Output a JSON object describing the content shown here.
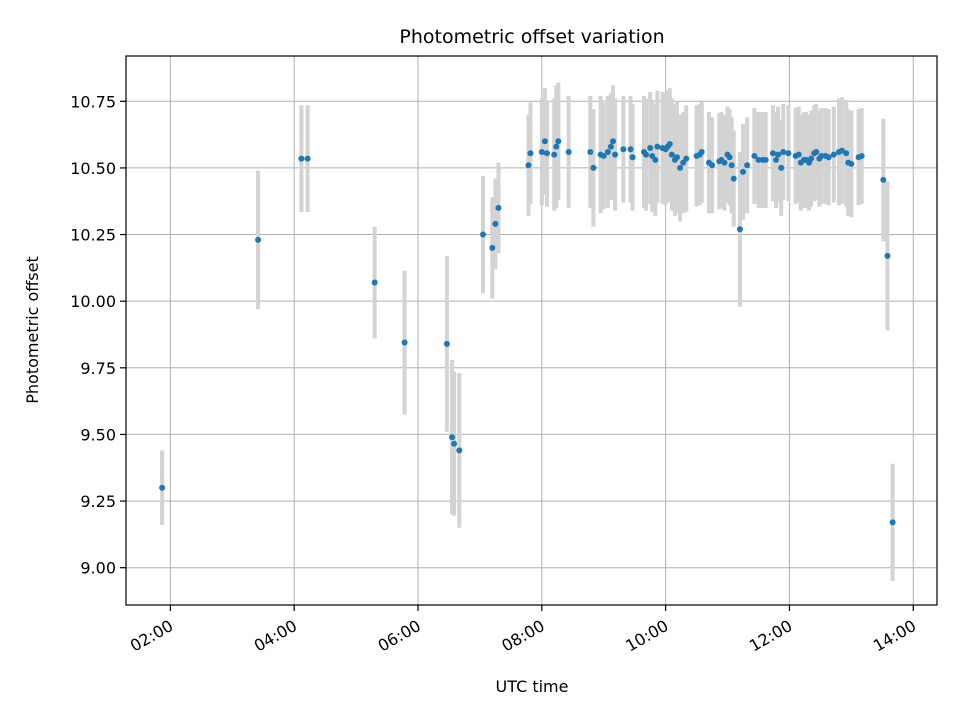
{
  "chart_data": {
    "type": "scatter",
    "title": "Photometric offset variation",
    "xlabel": "UTC time",
    "ylabel": "Photometric offset",
    "xlim": [
      "01:17",
      "14:23"
    ],
    "ylim": [
      8.86,
      10.92
    ],
    "x_ticks": [
      "02:00",
      "04:00",
      "06:00",
      "08:00",
      "10:00",
      "12:00",
      "14:00"
    ],
    "y_ticks": [
      "9.00",
      "9.25",
      "9.50",
      "9.75",
      "10.00",
      "10.25",
      "10.50",
      "10.75"
    ],
    "grid": true,
    "colors": {
      "marker": "#1f77b4",
      "errorbar": "#d3d3d3",
      "grid": "#b0b0b0",
      "axis": "#000000"
    },
    "series": [
      {
        "x": [
          "01:52",
          "03:25",
          "04:07",
          "04:13",
          "05:18",
          "05:47",
          "06:28",
          "06:33",
          "06:35",
          "06:40",
          "07:03",
          "07:12",
          "07:15",
          "07:18",
          "07:47",
          "07:49",
          "08:00",
          "08:03",
          "08:05",
          "08:12",
          "08:14",
          "08:16",
          "08:26",
          "08:47",
          "08:50",
          "08:57",
          "09:00",
          "09:04",
          "09:07",
          "09:09",
          "09:11",
          "09:19",
          "09:26",
          "09:28",
          "09:39",
          "09:41",
          "09:45",
          "09:47",
          "09:50",
          "09:52",
          "09:57",
          "10:00",
          "10:02",
          "10:04",
          "10:06",
          "10:09",
          "10:11",
          "10:14",
          "10:17",
          "10:20",
          "10:30",
          "10:33",
          "10:35",
          "10:42",
          "10:45",
          "10:52",
          "10:54",
          "10:57",
          "11:00",
          "11:02",
          "11:04",
          "11:06",
          "11:12",
          "11:15",
          "11:19",
          "11:26",
          "11:30",
          "11:34",
          "11:37",
          "11:44",
          "11:47",
          "11:49",
          "11:52",
          "11:54",
          "11:59",
          "12:06",
          "12:09",
          "12:11",
          "12:14",
          "12:16",
          "12:19",
          "12:21",
          "12:24",
          "12:26",
          "12:29",
          "12:31",
          "12:35",
          "12:38",
          "12:43",
          "12:48",
          "12:51",
          "12:55",
          "12:57",
          "13:00",
          "13:07",
          "13:10",
          "13:31",
          "13:35",
          "13:40"
        ],
        "y": [
          9.3,
          10.23,
          10.535,
          10.535,
          10.07,
          9.845,
          9.84,
          9.49,
          9.465,
          9.44,
          10.25,
          10.2,
          10.29,
          10.35,
          10.51,
          10.555,
          10.56,
          10.6,
          10.555,
          10.55,
          10.58,
          10.6,
          10.56,
          10.56,
          10.5,
          10.55,
          10.545,
          10.56,
          10.58,
          10.6,
          10.55,
          10.57,
          10.57,
          10.54,
          10.56,
          10.55,
          10.575,
          10.545,
          10.53,
          10.58,
          10.575,
          10.57,
          10.58,
          10.59,
          10.55,
          10.53,
          10.54,
          10.5,
          10.52,
          10.535,
          10.545,
          10.55,
          10.56,
          10.52,
          10.51,
          10.525,
          10.53,
          10.52,
          10.55,
          10.54,
          10.51,
          10.46,
          10.27,
          10.485,
          10.51,
          10.545,
          10.53,
          10.53,
          10.53,
          10.555,
          10.53,
          10.55,
          10.5,
          10.56,
          10.555,
          10.545,
          10.55,
          10.52,
          10.53,
          10.53,
          10.52,
          10.535,
          10.555,
          10.56,
          10.535,
          10.545,
          10.545,
          10.54,
          10.55,
          10.56,
          10.565,
          10.555,
          10.52,
          10.515,
          10.54,
          10.545,
          10.455,
          10.17,
          9.17
        ],
        "err": [
          0.14,
          0.26,
          0.2,
          0.2,
          0.21,
          0.27,
          0.33,
          0.29,
          0.27,
          0.29,
          0.22,
          0.19,
          0.17,
          0.17,
          0.19,
          0.19,
          0.2,
          0.2,
          0.2,
          0.21,
          0.23,
          0.22,
          0.21,
          0.21,
          0.22,
          0.22,
          0.2,
          0.21,
          0.2,
          0.21,
          0.21,
          0.2,
          0.2,
          0.2,
          0.21,
          0.21,
          0.21,
          0.21,
          0.21,
          0.21,
          0.21,
          0.21,
          0.21,
          0.21,
          0.21,
          0.21,
          0.21,
          0.2,
          0.19,
          0.2,
          0.19,
          0.19,
          0.19,
          0.19,
          0.18,
          0.18,
          0.18,
          0.18,
          0.18,
          0.18,
          0.18,
          0.18,
          0.29,
          0.18,
          0.18,
          0.18,
          0.18,
          0.18,
          0.18,
          0.18,
          0.18,
          0.18,
          0.18,
          0.18,
          0.18,
          0.18,
          0.18,
          0.18,
          0.18,
          0.18,
          0.18,
          0.18,
          0.18,
          0.18,
          0.18,
          0.18,
          0.18,
          0.18,
          0.18,
          0.2,
          0.2,
          0.2,
          0.2,
          0.2,
          0.18,
          0.18,
          0.23,
          0.28,
          0.22
        ]
      }
    ]
  }
}
